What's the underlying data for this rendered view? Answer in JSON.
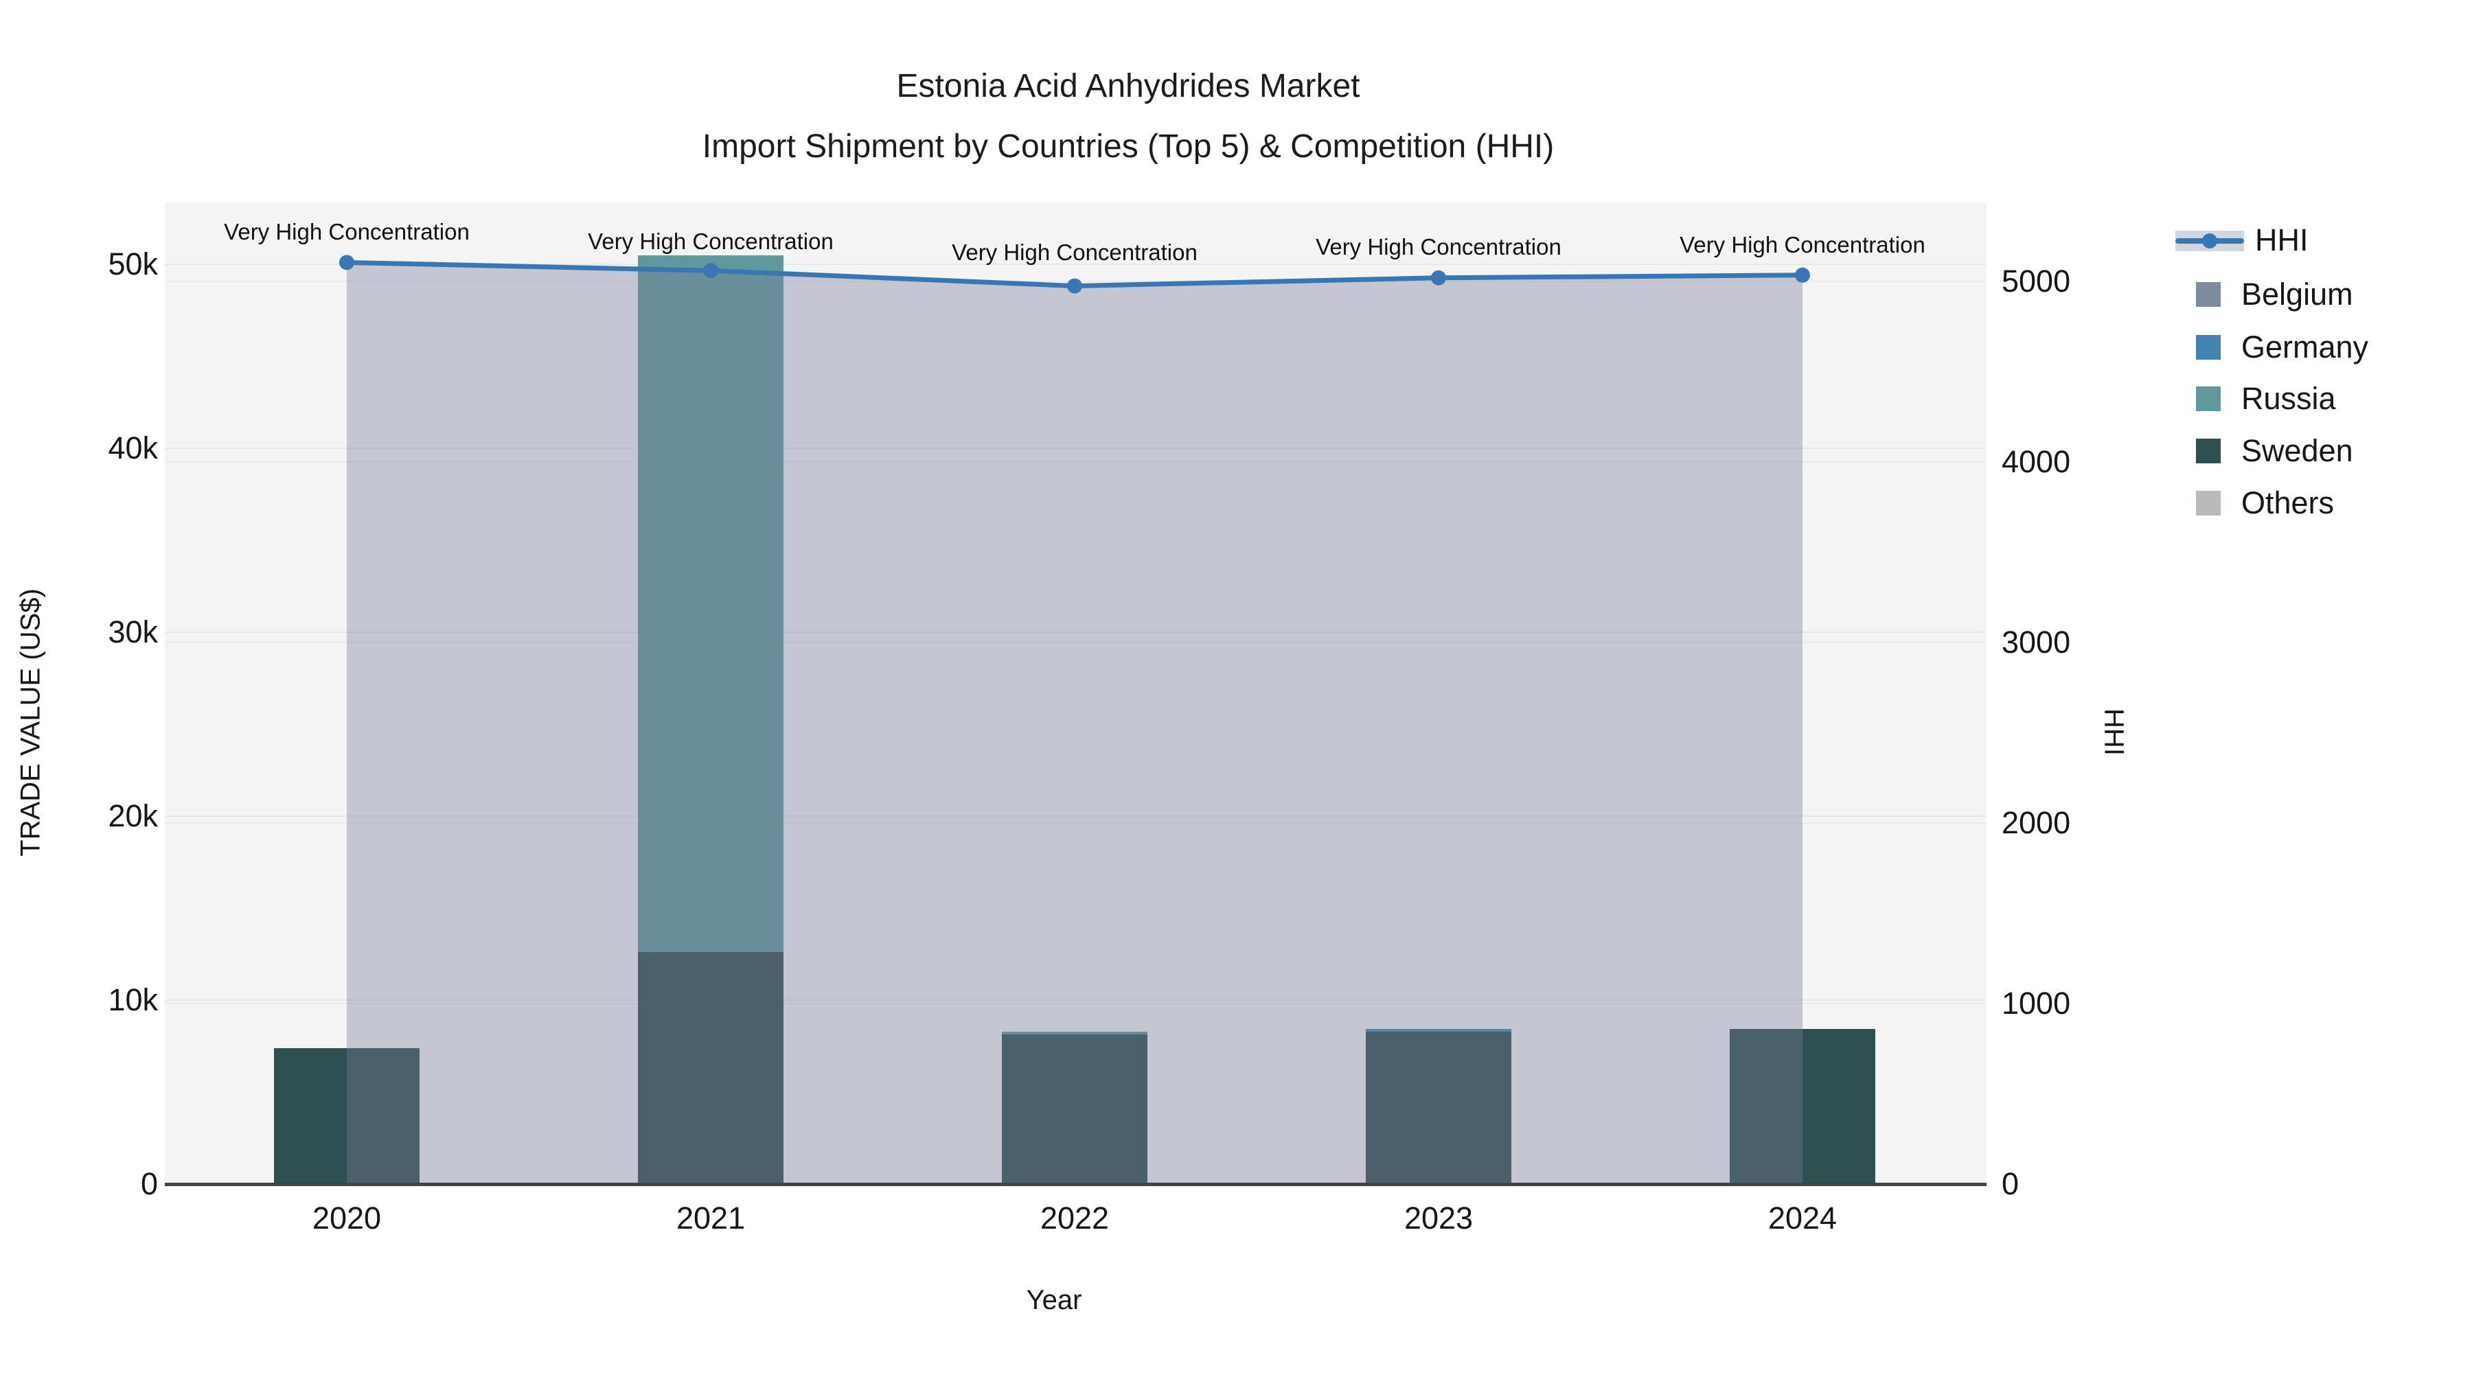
{
  "title": {
    "line1": "Estonia Acid Anhydrides Market",
    "line2": "Import Shipment by Countries (Top 5) & Competition (HHI)"
  },
  "colors": {
    "hhi_line": "#3877b3",
    "band_fill": "rgba(118,126,153,0.38)",
    "belgium": "#7c8b9d",
    "germany": "#4383b4",
    "russia": "#5f999c",
    "sweden": "#2f5051",
    "others": "#b6bcbb",
    "plot_background": "#f4f4f5"
  },
  "chart_data": {
    "type": "bar+line",
    "title": "Estonia Acid Anhydrides Market — Import Shipment by Countries (Top 5) & Competition (HHI)",
    "categories": [
      "2020",
      "2021",
      "2022",
      "2023",
      "2024"
    ],
    "xlabel": "Year",
    "ylabel_left": "TRADE VALUE (US$)",
    "ylabel_right": "HHI",
    "left_axis": {
      "tick_labels": [
        "0",
        "10k",
        "20k",
        "30k",
        "40k",
        "50k"
      ],
      "tick_values": [
        0,
        10000,
        20000,
        30000,
        40000,
        50000
      ],
      "range": [
        0,
        53400
      ],
      "grid": true
    },
    "right_axis": {
      "tick_labels": [
        "0",
        "1000",
        "2000",
        "3000",
        "4000",
        "5000"
      ],
      "tick_values": [
        0,
        1000,
        2000,
        3000,
        4000,
        5000
      ],
      "range": [
        0,
        5440
      ],
      "grid": true
    },
    "bar_series_stack_order": [
      {
        "name": "Sweden",
        "color": "#2f5051",
        "values": [
          7400,
          12600,
          8130,
          8280,
          8430
        ]
      },
      {
        "name": "Russia",
        "color": "#5f999c",
        "values": [
          0,
          37900,
          160,
          0,
          0
        ]
      },
      {
        "name": "Germany",
        "color": "#4383b4",
        "values": [
          0,
          0,
          0,
          160,
          0
        ]
      },
      {
        "name": "Belgium",
        "color": "#7c8b9d",
        "values": [
          0,
          0,
          0,
          0,
          0
        ]
      },
      {
        "name": "Others",
        "color": "#b6bcbb",
        "values": [
          0,
          0,
          0,
          0,
          0
        ]
      }
    ],
    "line_series": {
      "name": "HHI",
      "color": "#3877b3",
      "values": [
        5105,
        5060,
        4975,
        5020,
        5035
      ],
      "area_band_to_zero": true
    },
    "annotations": [
      {
        "x": "2020",
        "text": "Very High Concentration"
      },
      {
        "x": "2021",
        "text": "Very High Concentration"
      },
      {
        "x": "2022",
        "text": "Very High Concentration"
      },
      {
        "x": "2023",
        "text": "Very High Concentration"
      },
      {
        "x": "2024",
        "text": "Very High Concentration"
      }
    ],
    "legend_position": "right"
  },
  "legend": {
    "items": [
      {
        "label": "HHI",
        "type": "line",
        "color": "#3877b3"
      },
      {
        "label": "Belgium",
        "type": "square",
        "color": "#7c8b9d"
      },
      {
        "label": "Germany",
        "type": "square",
        "color": "#4383b4"
      },
      {
        "label": "Russia",
        "type": "square",
        "color": "#5f999c"
      },
      {
        "label": "Sweden",
        "type": "square",
        "color": "#2f5051"
      },
      {
        "label": "Others",
        "type": "square",
        "color": "#b6bcbb"
      }
    ]
  }
}
